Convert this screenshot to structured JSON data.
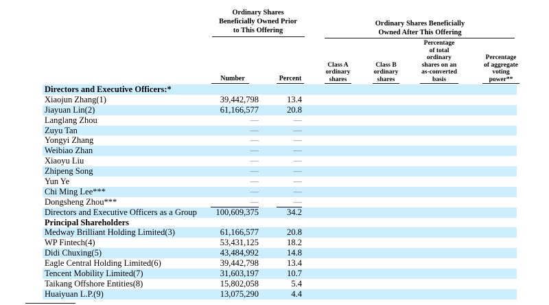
{
  "colors": {
    "row_shade": "#cceeff",
    "dash": "#808080",
    "rule": "#1a1a1a",
    "text": "#000000",
    "background": "#ffffff"
  },
  "table": {
    "group_headers": [
      {
        "lines": [
          "Ordinary Shares",
          "Beneficially Owned Prior",
          "to This Offering"
        ]
      },
      {
        "lines": [
          "Ordinary Shares Beneficially",
          "Owned After This Offering"
        ]
      }
    ],
    "column_headers": {
      "number": "Number",
      "percent": "Percent",
      "class_a": {
        "lines": [
          "Class A",
          "ordinary",
          "shares"
        ]
      },
      "class_b": {
        "lines": [
          "Class B",
          "ordinary",
          "shares"
        ]
      },
      "pct_total": {
        "lines": [
          "Percentage",
          "of total",
          "ordinary",
          "shares on an",
          "as-converted",
          "basis"
        ]
      },
      "voting": {
        "lines": [
          "Percentage",
          "of aggregate",
          "voting",
          "power**"
        ]
      }
    },
    "rows": [
      {
        "name": "Directors and Executive Officers:*",
        "number": "",
        "percent": "",
        "bold": true,
        "shaded": true
      },
      {
        "name": "Xiaojun Zhang(1)",
        "number": "39,442,798",
        "percent": "13.4",
        "bold": false,
        "shaded": false
      },
      {
        "name": "Jiayuan Lin(2)",
        "number": "61,166,577",
        "percent": "20.8",
        "bold": false,
        "shaded": true
      },
      {
        "name": "Langlang Zhou",
        "number": "—",
        "percent": "—",
        "bold": false,
        "shaded": false
      },
      {
        "name": "Zuyu Tan",
        "number": "—",
        "percent": "—",
        "bold": false,
        "shaded": true
      },
      {
        "name": "Yongyi Zhang",
        "number": "—",
        "percent": "—",
        "bold": false,
        "shaded": false
      },
      {
        "name": "Weibiao Zhan",
        "number": "—",
        "percent": "—",
        "bold": false,
        "shaded": true
      },
      {
        "name": "Xiaoyu Liu",
        "number": "—",
        "percent": "—",
        "bold": false,
        "shaded": false
      },
      {
        "name": "Zhipeng Song",
        "number": "—",
        "percent": "—",
        "bold": false,
        "shaded": true
      },
      {
        "name": "Yun Ye",
        "number": "—",
        "percent": "—",
        "bold": false,
        "shaded": false
      },
      {
        "name": "Chi Ming Lee***",
        "number": "—",
        "percent": "—",
        "bold": false,
        "shaded": true
      },
      {
        "name": "Dongsheng Zhou***",
        "number": "—",
        "percent": "—",
        "bold": false,
        "shaded": false,
        "rule_below": true
      },
      {
        "name": "Directors and Executive Officers as a Group",
        "number": "100,609,375",
        "percent": "34.2",
        "bold": false,
        "shaded": true
      },
      {
        "name": "Principal Shareholders",
        "number": "",
        "percent": "",
        "bold": true,
        "shaded": false
      },
      {
        "name": "Medway Brilliant Holding Limited(3)",
        "number": "61,166,577",
        "percent": "20.8",
        "bold": false,
        "shaded": true
      },
      {
        "name": "WP Fintech(4)",
        "number": "53,431,125",
        "percent": "18.2",
        "bold": false,
        "shaded": false
      },
      {
        "name": "Didi Chuxing(5)",
        "number": "43,484,992",
        "percent": "14.8",
        "bold": false,
        "shaded": true
      },
      {
        "name": "Eagle Central Holding Limited(6)",
        "number": "39,442,798",
        "percent": "13.4",
        "bold": false,
        "shaded": false
      },
      {
        "name": "Tencent Mobility Limited(7)",
        "number": "31,603,197",
        "percent": "10.7",
        "bold": false,
        "shaded": true
      },
      {
        "name": "Taikang Offshore Entities(8)",
        "number": "15,802,058",
        "percent": "5.4",
        "bold": false,
        "shaded": false
      },
      {
        "name": "Huaiyuan L.P.(9)",
        "number": "13,075,290",
        "percent": "4.4",
        "bold": false,
        "shaded": true
      }
    ]
  }
}
